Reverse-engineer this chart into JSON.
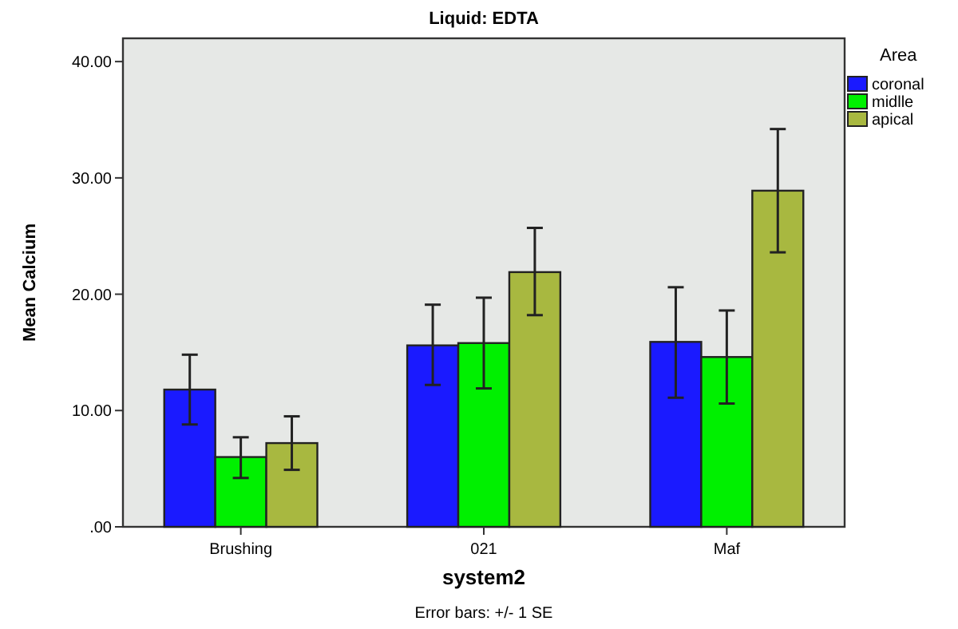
{
  "chart_data": {
    "type": "bar",
    "title": "Liquid: EDTA",
    "xlabel": "system2",
    "ylabel": "Mean Calcium",
    "legend_title": "Area",
    "legend": "top right",
    "grid": false,
    "categories": [
      "Brushing",
      "021",
      "Maf"
    ],
    "series": [
      {
        "name": "coronal",
        "color": "#1a1aff",
        "values": [
          11.8,
          15.6,
          15.9
        ],
        "errors": [
          [
            8.8,
            14.8
          ],
          [
            12.2,
            19.1
          ],
          [
            11.1,
            20.6
          ]
        ]
      },
      {
        "name": "midlle",
        "color": "#00f000",
        "values": [
          6.0,
          15.8,
          14.6
        ],
        "errors": [
          [
            4.2,
            7.7
          ],
          [
            11.9,
            19.7
          ],
          [
            10.6,
            18.6
          ]
        ]
      },
      {
        "name": "apical",
        "color": "#a8b840",
        "values": [
          7.2,
          21.9,
          28.9
        ],
        "errors": [
          [
            4.9,
            9.5
          ],
          [
            18.2,
            25.7
          ],
          [
            23.6,
            34.2
          ]
        ]
      }
    ],
    "ylim": [
      0,
      42
    ],
    "yticks": [
      {
        "value": 0,
        "label": ".00"
      },
      {
        "value": 10,
        "label": "10.00"
      },
      {
        "value": 20,
        "label": "20.00"
      },
      {
        "value": 30,
        "label": "30.00"
      },
      {
        "value": 40,
        "label": "40.00"
      }
    ],
    "annotations": [
      "Error bars: +/- 1 SE"
    ]
  }
}
